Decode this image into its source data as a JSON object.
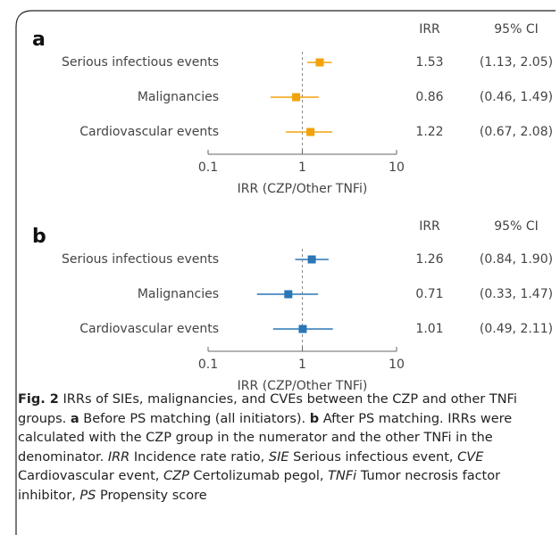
{
  "chart_data": [
    {
      "type": "forest",
      "panel_label": "a",
      "value_header": "IRR",
      "ci_header": "95% CI",
      "categories": [
        "Serious infectious events",
        "Malignancies",
        "Cardiovascular events"
      ],
      "values": [
        1.53,
        0.86,
        1.22
      ],
      "ci_lower": [
        1.13,
        0.46,
        0.67
      ],
      "ci_upper": [
        2.05,
        1.49,
        2.08
      ],
      "ci_labels": [
        "(1.13, 2.05)",
        "(0.46, 1.49)",
        "(0.67, 2.08)"
      ],
      "color": "#f2a20c",
      "xscale": "log",
      "xlim": [
        0.1,
        10
      ],
      "xticks": [
        0.1,
        1,
        10
      ],
      "xlabel": "IRR (CZP/Other TNFi)",
      "reference_line": 1
    },
    {
      "type": "forest",
      "panel_label": "b",
      "value_header": "IRR",
      "ci_header": "95% CI",
      "categories": [
        "Serious infectious events",
        "Malignancies",
        "Cardiovascular events"
      ],
      "values": [
        1.26,
        0.71,
        1.01
      ],
      "ci_lower": [
        0.84,
        0.33,
        0.49
      ],
      "ci_upper": [
        1.9,
        1.47,
        2.11
      ],
      "ci_labels": [
        "(0.84, 1.90)",
        "(0.33, 1.47)",
        "(0.49, 2.11)"
      ],
      "color": "#2a76b6",
      "xscale": "log",
      "xlim": [
        0.1,
        10
      ],
      "xticks": [
        0.1,
        1,
        10
      ],
      "xlabel": "IRR (CZP/Other TNFi)",
      "reference_line": 1
    }
  ],
  "caption": [
    {
      "text": "Fig. 2",
      "style": "bold"
    },
    {
      "text": " IRRs of SIEs, malignancies, and CVEs between the CZP and other TNFi groups. "
    },
    {
      "text": "a",
      "style": "bold"
    },
    {
      "text": " Before PS matching (all initiators). "
    },
    {
      "text": "b",
      "style": "bold"
    },
    {
      "text": " After PS matching. IRRs were calculated with the CZP group in the numerator and the other TNFi in the denominator. "
    },
    {
      "text": "IRR",
      "style": "italic"
    },
    {
      "text": " Incidence rate ratio, "
    },
    {
      "text": "SIE",
      "style": "italic"
    },
    {
      "text": " Serious infectious event, "
    },
    {
      "text": "CVE",
      "style": "italic"
    },
    {
      "text": " Cardiovascular event, "
    },
    {
      "text": "CZP",
      "style": "italic"
    },
    {
      "text": " Certolizumab pegol, "
    },
    {
      "text": "TNFi",
      "style": "italic"
    },
    {
      "text": " Tumor necrosis factor inhibitor, "
    },
    {
      "text": "PS",
      "style": "italic"
    },
    {
      "text": " Propensity score"
    }
  ]
}
